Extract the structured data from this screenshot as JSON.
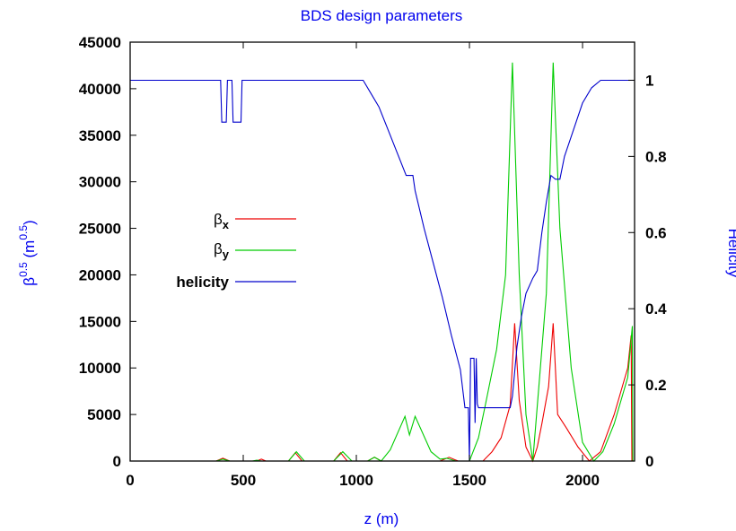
{
  "chart_data": {
    "type": "line",
    "title": "BDS design parameters",
    "xlabel": "z (m)",
    "ylabel_left": "β0.5 (m0.5)",
    "ylabel_right": "Helicity",
    "xlim": [
      0,
      2230
    ],
    "ylim_left": [
      0,
      45000
    ],
    "ylim_right": [
      0,
      1.1
    ],
    "x_ticks": [
      0,
      500,
      1000,
      1500,
      2000
    ],
    "y_left_ticks": [
      0,
      5000,
      10000,
      15000,
      20000,
      25000,
      30000,
      35000,
      40000,
      45000
    ],
    "y_right_ticks": [
      0,
      0.2,
      0.4,
      0.6,
      0.8,
      1
    ],
    "grid": false,
    "legend_position": "left-middle",
    "series": [
      {
        "name": "βx",
        "axis": "left",
        "color": "#ee0000",
        "x": [
          0,
          380,
          410,
          440,
          560,
          580,
          600,
          700,
          730,
          760,
          900,
          930,
          960,
          1050,
          1080,
          1110,
          1370,
          1410,
          1450,
          1560,
          1600,
          1640,
          1680,
          1700,
          1720,
          1750,
          1780,
          1800,
          1820,
          1850,
          1870,
          1890,
          1930,
          1980,
          2030,
          2080,
          2140,
          2200,
          2215,
          2218,
          2230
        ],
        "y": [
          0,
          0,
          300,
          0,
          0,
          200,
          0,
          0,
          900,
          0,
          0,
          900,
          0,
          0,
          400,
          0,
          0,
          400,
          0,
          0,
          1000,
          2500,
          6000,
          14800,
          6500,
          1500,
          0,
          1500,
          4000,
          8000,
          14800,
          5000,
          3500,
          1500,
          0,
          1000,
          5000,
          10000,
          13500,
          0,
          0
        ]
      },
      {
        "name": "βy",
        "axis": "left",
        "color": "#00cc00",
        "x": [
          0,
          380,
          410,
          440,
          540,
          560,
          580,
          700,
          735,
          770,
          900,
          940,
          980,
          1050,
          1080,
          1110,
          1150,
          1215,
          1235,
          1260,
          1330,
          1370,
          1400,
          1440,
          1500,
          1540,
          1570,
          1620,
          1660,
          1690,
          1720,
          1750,
          1780,
          1810,
          1840,
          1870,
          1900,
          1950,
          2000,
          2050,
          2090,
          2140,
          2200,
          2220,
          2222,
          2230
        ],
        "y": [
          0,
          0,
          200,
          0,
          0,
          100,
          0,
          0,
          1000,
          0,
          0,
          1000,
          0,
          0,
          400,
          0,
          1200,
          4800,
          2800,
          4800,
          1000,
          200,
          300,
          0,
          0,
          2500,
          6000,
          12000,
          20000,
          42800,
          20000,
          5000,
          0,
          9000,
          18000,
          42800,
          25000,
          10000,
          2000,
          0,
          1000,
          4000,
          9000,
          14500,
          0,
          0
        ]
      },
      {
        "name": "helicity",
        "axis": "right",
        "color": "#0000cc",
        "x": [
          0,
          400,
          405,
          425,
          430,
          450,
          455,
          470,
          475,
          490,
          495,
          1030,
          1060,
          1100,
          1140,
          1180,
          1220,
          1250,
          1260,
          1300,
          1340,
          1380,
          1420,
          1460,
          1480,
          1490,
          1495,
          1500,
          1505,
          1520,
          1525,
          1530,
          1535,
          1540,
          1600,
          1680,
          1690,
          1710,
          1730,
          1750,
          1780,
          1800,
          1820,
          1840,
          1860,
          1880,
          1900,
          1920,
          1960,
          2000,
          2040,
          2080,
          2110,
          2150,
          2230
        ],
        "y": [
          1.0,
          1.0,
          0.89,
          0.89,
          1.0,
          1.0,
          0.89,
          0.89,
          0.89,
          0.89,
          1.0,
          1.0,
          0.97,
          0.93,
          0.87,
          0.81,
          0.75,
          0.75,
          0.71,
          0.61,
          0.52,
          0.43,
          0.33,
          0.24,
          0.14,
          0.14,
          0.14,
          0.0,
          0.27,
          0.27,
          0.1,
          0.27,
          0.15,
          0.14,
          0.14,
          0.14,
          0.17,
          0.3,
          0.38,
          0.44,
          0.48,
          0.5,
          0.6,
          0.68,
          0.75,
          0.74,
          0.74,
          0.8,
          0.87,
          0.94,
          0.98,
          1.0,
          1.0,
          1.0,
          1.0
        ]
      }
    ]
  },
  "legend": {
    "beta_symbol": "β",
    "bx_sub": "x",
    "by_sub": "y",
    "helicity_label": "helicity"
  },
  "axis_text": {
    "ylabel_left_base": "β",
    "ylabel_left_sup": "0.5",
    "ylabel_left_mid": " (m",
    "ylabel_left_sup2": "0.5",
    "ylabel_left_end": ")"
  }
}
